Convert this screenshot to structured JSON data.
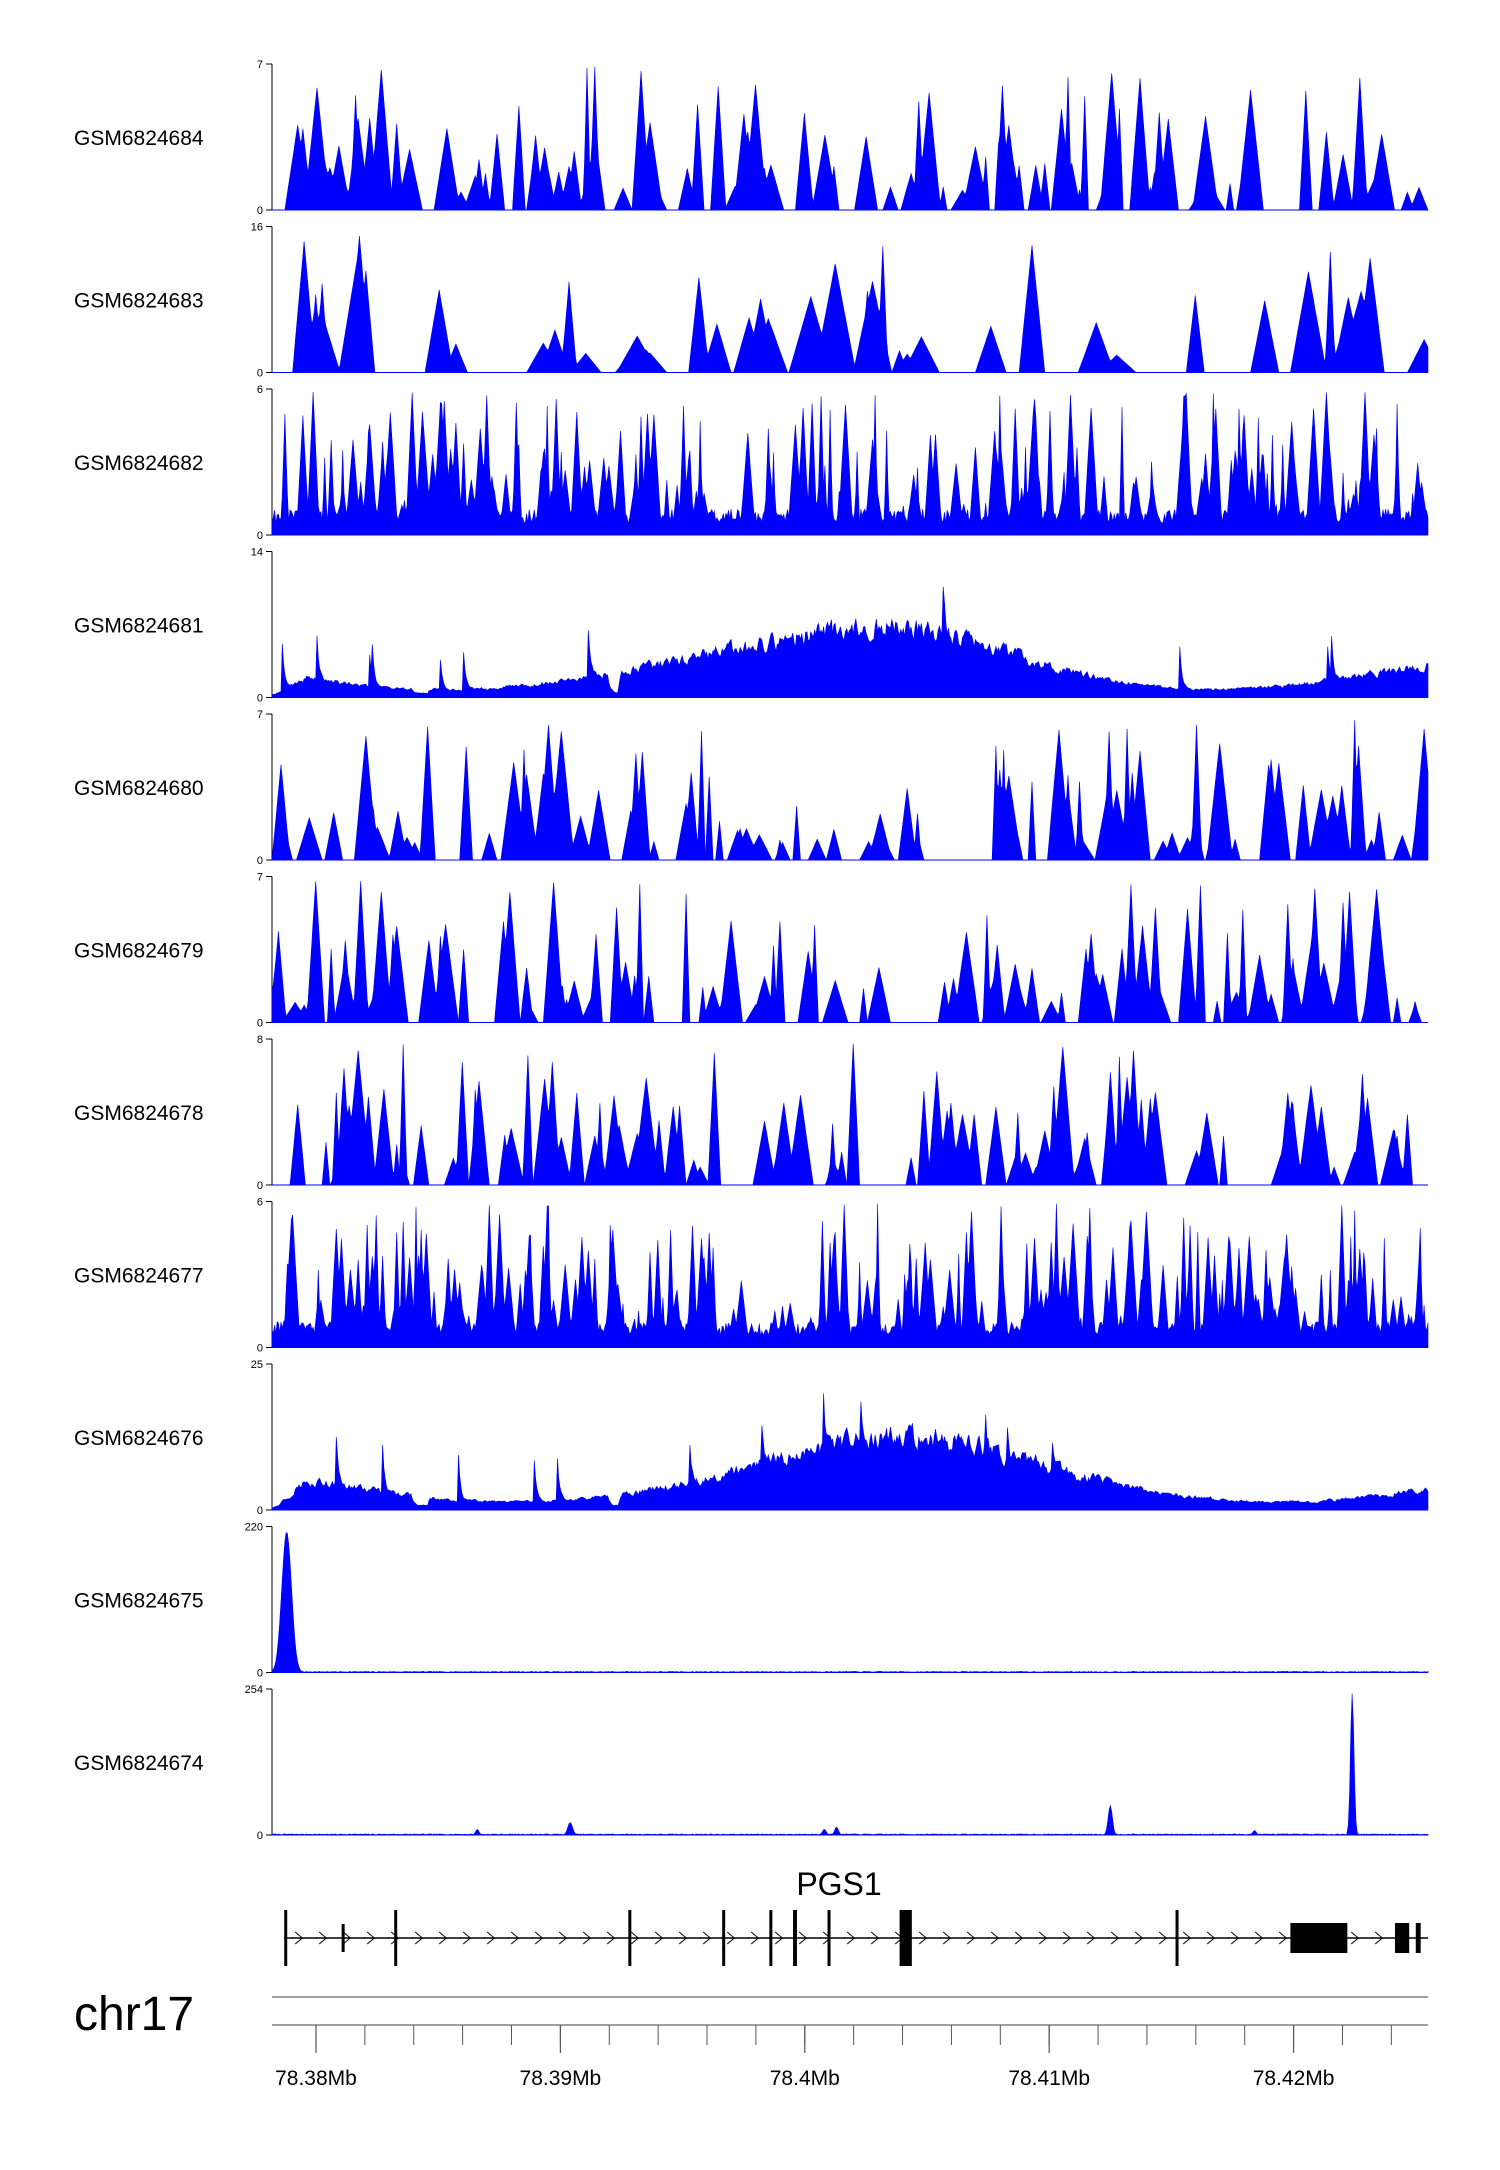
{
  "chart_data": {
    "type": "area",
    "colors": {
      "signal": "#0000ff",
      "gene": "#000000",
      "axis": "#000000"
    },
    "genomic_range": {
      "start": 78378200,
      "end": 78425500
    },
    "tracks": [
      {
        "name": "GSM6824684",
        "ymax": 7,
        "ymin": 0,
        "ymax_label": "7",
        "ymin_label": "0",
        "pattern": "sparse",
        "seed": 11
      },
      {
        "name": "GSM6824683",
        "ymax": 16,
        "ymin": 0,
        "ymax_label": "16",
        "ymin_label": "0",
        "pattern": "sparse_wide",
        "seed": 23
      },
      {
        "name": "GSM6824682",
        "ymax": 6,
        "ymin": 0,
        "ymax_label": "6",
        "ymin_label": "0",
        "pattern": "dense",
        "seed": 37
      },
      {
        "name": "GSM6824681",
        "ymax": 14,
        "ymin": 0,
        "ymax_label": "14",
        "ymin_label": "0",
        "pattern": "broad",
        "seed": 41
      },
      {
        "name": "GSM6824680",
        "ymax": 7,
        "ymin": 0,
        "ymax_label": "7",
        "ymin_label": "0",
        "pattern": "sparse",
        "seed": 53
      },
      {
        "name": "GSM6824679",
        "ymax": 7,
        "ymin": 0,
        "ymax_label": "7",
        "ymin_label": "0",
        "pattern": "sparse",
        "seed": 67
      },
      {
        "name": "GSM6824678",
        "ymax": 8,
        "ymin": 0,
        "ymax_label": "8",
        "ymin_label": "0",
        "pattern": "sparse",
        "seed": 71
      },
      {
        "name": "GSM6824677",
        "ymax": 6,
        "ymin": 0,
        "ymax_label": "6",
        "ymin_label": "0",
        "pattern": "dense",
        "seed": 83
      },
      {
        "name": "GSM6824676",
        "ymax": 25,
        "ymin": 0,
        "ymax_label": "25",
        "ymin_label": "0",
        "pattern": "broad",
        "seed": 97
      },
      {
        "name": "GSM6824675",
        "ymax": 220,
        "ymin": 0,
        "ymax_label": "220",
        "ymin_label": "0",
        "pattern": "peaks",
        "peaks": [
          {
            "pos": 78378800,
            "height": 215,
            "width": 280
          }
        ],
        "seed": 101
      },
      {
        "name": "GSM6824674",
        "ymax": 254,
        "ymin": 0,
        "ymax_label": "254",
        "ymin_label": "0",
        "pattern": "peaks",
        "peaks": [
          {
            "pos": 78386600,
            "height": 10,
            "width": 100
          },
          {
            "pos": 78390400,
            "height": 22,
            "width": 140
          },
          {
            "pos": 78400800,
            "height": 10,
            "width": 110
          },
          {
            "pos": 78401300,
            "height": 14,
            "width": 110
          },
          {
            "pos": 78412500,
            "height": 52,
            "width": 120
          },
          {
            "pos": 78418400,
            "height": 8,
            "width": 100
          },
          {
            "pos": 78422400,
            "height": 250,
            "width": 100
          }
        ],
        "seed": 113
      }
    ],
    "gene": {
      "name": "PGS1",
      "start": 78378700,
      "end": 78425500,
      "strand": "+",
      "exons": [
        {
          "start": 78378700,
          "end": 78378800,
          "thick": false
        },
        {
          "start": 78381050,
          "end": 78381150,
          "thick": false
        },
        {
          "start": 78383200,
          "end": 78383300,
          "thick": false
        },
        {
          "start": 78392780,
          "end": 78392880,
          "thick": false
        },
        {
          "start": 78396620,
          "end": 78396720,
          "thick": false
        },
        {
          "start": 78398550,
          "end": 78398650,
          "thick": false
        },
        {
          "start": 78399520,
          "end": 78399680,
          "thick": false
        },
        {
          "start": 78400930,
          "end": 78401030,
          "thick": false
        },
        {
          "start": 78403880,
          "end": 78404380,
          "thick": true
        },
        {
          "start": 78415170,
          "end": 78415270,
          "thick": false
        },
        {
          "start": 78419870,
          "end": 78422200,
          "thick": true
        },
        {
          "start": 78424150,
          "end": 78424730,
          "thick": true
        },
        {
          "start": 78425000,
          "end": 78425200,
          "thick": true
        }
      ]
    },
    "chromosome": "chr17",
    "axis": {
      "tick_labels": [
        {
          "pos": 78380000,
          "label": "78.38Mb"
        },
        {
          "pos": 78390000,
          "label": "78.39Mb"
        },
        {
          "pos": 78400000,
          "label": "78.4Mb"
        },
        {
          "pos": 78410000,
          "label": "78.41Mb"
        },
        {
          "pos": 78420000,
          "label": "78.42Mb"
        }
      ],
      "minor_tick_step": 2000,
      "minor_tick_start": 78380000
    }
  }
}
